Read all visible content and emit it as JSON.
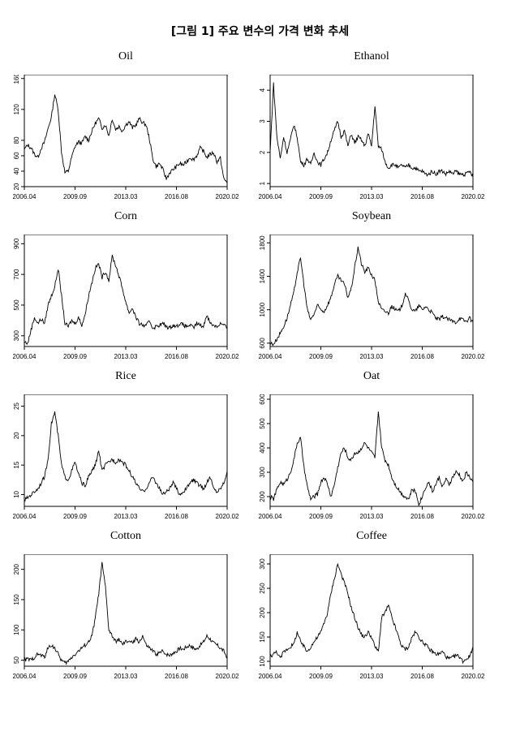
{
  "figure_title": "[그림 1] 주요 변수의 가격 변화 추세",
  "x_ticks": [
    "2006.04",
    "2009.09",
    "2013.03",
    "2016.08",
    "2020.02"
  ],
  "colors": {
    "line": "#000000",
    "background": "#ffffff"
  },
  "chart_data": [
    {
      "type": "line",
      "title": "Oil",
      "xlabel": "",
      "ylabel": "",
      "yticks": [
        20,
        40,
        60,
        80,
        120,
        160
      ],
      "ylim": [
        20,
        165
      ],
      "series": [
        {
          "values": [
            68,
            74,
            70,
            62,
            58,
            70,
            78,
            95,
            110,
            140,
            120,
            65,
            38,
            40,
            58,
            72,
            78,
            76,
            85,
            80,
            92,
            102,
            108,
            96,
            100,
            86,
            108,
            94,
            98,
            92,
            100,
            104,
            96,
            100,
            108,
            103,
            100,
            82,
            56,
            46,
            50,
            42,
            30,
            38,
            42,
            46,
            50,
            48,
            52,
            58,
            55,
            60,
            70,
            66,
            58,
            62,
            64,
            52,
            57,
            30,
            25
          ]
        }
      ]
    },
    {
      "type": "line",
      "title": "Ethanol",
      "xlabel": "",
      "ylabel": "",
      "yticks": [
        1,
        2,
        3,
        4
      ],
      "ylim": [
        0.9,
        4.5
      ],
      "series": [
        {
          "values": [
            2.0,
            4.2,
            2.5,
            1.8,
            2.5,
            2.0,
            2.4,
            2.9,
            2.5,
            1.7,
            1.6,
            1.8,
            1.6,
            2.0,
            1.7,
            1.6,
            1.8,
            2.0,
            2.4,
            2.7,
            3.0,
            2.5,
            2.7,
            2.2,
            2.6,
            2.3,
            2.5,
            2.4,
            2.2,
            2.6,
            2.2,
            3.5,
            2.2,
            2.1,
            1.7,
            1.5,
            1.6,
            1.6,
            1.5,
            1.6,
            1.5,
            1.6,
            1.5,
            1.5,
            1.4,
            1.4,
            1.3,
            1.3,
            1.4,
            1.3,
            1.4,
            1.4,
            1.3,
            1.4,
            1.3,
            1.4,
            1.3,
            1.3,
            1.3,
            1.4,
            1.2
          ]
        }
      ]
    },
    {
      "type": "line",
      "title": "Corn",
      "xlabel": "",
      "ylabel": "",
      "yticks": [
        300,
        500,
        700,
        900
      ],
      "ylim": [
        230,
        960
      ],
      "series": [
        {
          "values": [
            260,
            250,
            340,
            420,
            380,
            410,
            380,
            500,
            560,
            620,
            740,
            560,
            380,
            360,
            400,
            380,
            420,
            370,
            440,
            560,
            650,
            740,
            770,
            680,
            720,
            660,
            820,
            760,
            690,
            610,
            520,
            450,
            480,
            420,
            380,
            370,
            360,
            400,
            350,
            360,
            370,
            380,
            360,
            350,
            370,
            360,
            380,
            370,
            360,
            370,
            350,
            380,
            370,
            360,
            440,
            380,
            370,
            360,
            380,
            370,
            350
          ]
        }
      ]
    },
    {
      "type": "line",
      "title": "Soybean",
      "xlabel": "",
      "ylabel": "",
      "yticks": [
        600,
        1000,
        1400,
        1800
      ],
      "ylim": [
        560,
        1900
      ],
      "series": [
        {
          "values": [
            600,
            590,
            650,
            720,
            800,
            900,
            1050,
            1200,
            1450,
            1620,
            1300,
            1000,
            880,
            950,
            1050,
            1000,
            980,
            1060,
            1150,
            1300,
            1400,
            1350,
            1300,
            1150,
            1250,
            1500,
            1750,
            1550,
            1450,
            1500,
            1420,
            1350,
            1100,
            1000,
            980,
            960,
            1050,
            1000,
            980,
            1050,
            1200,
            1100,
            1000,
            980,
            1050,
            1000,
            1040,
            1000,
            960,
            900,
            880,
            920,
            900,
            880,
            860,
            850,
            900,
            880,
            860,
            900,
            850
          ]
        }
      ]
    },
    {
      "type": "line",
      "title": "Rice",
      "xlabel": "",
      "ylabel": "",
      "yticks": [
        10,
        15,
        20,
        25
      ],
      "ylim": [
        8,
        27
      ],
      "series": [
        {
          "values": [
            9,
            9.5,
            10,
            10.5,
            11,
            12,
            13,
            16,
            22,
            24,
            20,
            15,
            13,
            12.5,
            14,
            15.5,
            13.5,
            12,
            11.5,
            13,
            14,
            15,
            17.5,
            14,
            15,
            15.5,
            16,
            15.5,
            16,
            15.5,
            15,
            14,
            13,
            12,
            11,
            10.5,
            11,
            12,
            13,
            12,
            11,
            10,
            10.5,
            11,
            12,
            11,
            10,
            10.5,
            11,
            12,
            12.5,
            12,
            11.5,
            11,
            12,
            13,
            11,
            10.5,
            11,
            12,
            14
          ]
        }
      ]
    },
    {
      "type": "line",
      "title": "Oat",
      "xlabel": "",
      "ylabel": "",
      "yticks": [
        200,
        300,
        400,
        500,
        600
      ],
      "ylim": [
        160,
        620
      ],
      "series": [
        {
          "values": [
            200,
            190,
            230,
            260,
            250,
            270,
            300,
            350,
            420,
            440,
            320,
            240,
            190,
            200,
            210,
            260,
            280,
            250,
            200,
            250,
            320,
            380,
            400,
            360,
            350,
            380,
            380,
            400,
            420,
            400,
            380,
            360,
            550,
            400,
            350,
            330,
            280,
            250,
            230,
            210,
            200,
            190,
            230,
            220,
            170,
            200,
            240,
            260,
            220,
            250,
            280,
            240,
            270,
            250,
            280,
            300,
            290,
            260,
            300,
            280,
            260
          ]
        }
      ]
    },
    {
      "type": "line",
      "title": "Cotton",
      "xlabel": "",
      "ylabel": "",
      "yticks": [
        50,
        100,
        150,
        200
      ],
      "ylim": [
        40,
        225
      ],
      "series": [
        {
          "values": [
            50,
            52,
            50,
            55,
            60,
            58,
            55,
            70,
            75,
            70,
            60,
            50,
            45,
            48,
            55,
            60,
            65,
            70,
            75,
            80,
            90,
            120,
            160,
            210,
            170,
            100,
            90,
            80,
            85,
            75,
            80,
            82,
            78,
            85,
            80,
            90,
            75,
            70,
            65,
            60,
            62,
            65,
            60,
            58,
            62,
            65,
            70,
            68,
            72,
            75,
            70,
            68,
            75,
            80,
            90,
            85,
            78,
            75,
            70,
            65,
            55
          ]
        }
      ]
    },
    {
      "type": "line",
      "title": "Coffee",
      "xlabel": "",
      "ylabel": "",
      "yticks": [
        100,
        150,
        200,
        250,
        300
      ],
      "ylim": [
        90,
        320
      ],
      "series": [
        {
          "values": [
            110,
            115,
            120,
            105,
            120,
            125,
            130,
            135,
            160,
            140,
            130,
            120,
            130,
            140,
            150,
            160,
            180,
            200,
            240,
            270,
            300,
            280,
            260,
            240,
            210,
            190,
            170,
            155,
            150,
            160,
            150,
            130,
            120,
            190,
            200,
            215,
            190,
            170,
            150,
            130,
            125,
            130,
            150,
            160,
            150,
            140,
            135,
            125,
            120,
            115,
            115,
            120,
            110,
            105,
            108,
            112,
            110,
            100,
            105,
            110,
            130
          ]
        }
      ]
    }
  ]
}
